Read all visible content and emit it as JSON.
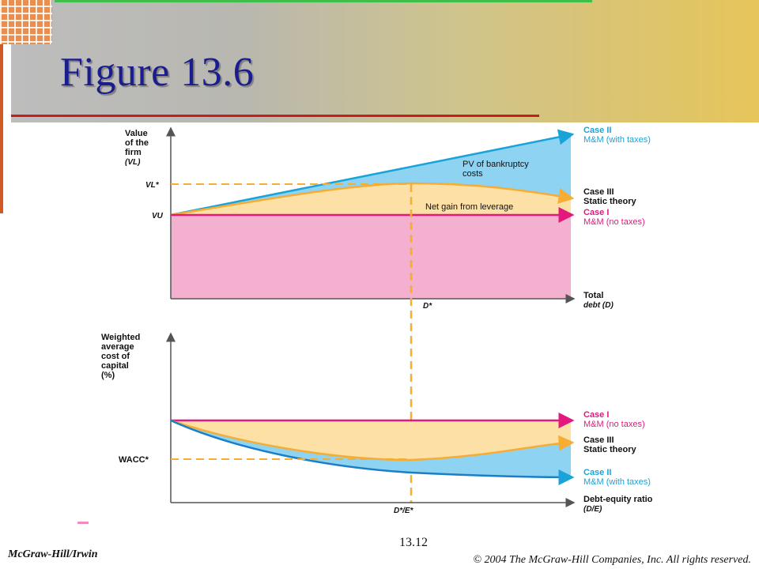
{
  "slide": {
    "title": "Figure 13.6",
    "page_number": "13.12",
    "footer_left": "McGraw-Hill/Irwin",
    "footer_right": "© 2004 The McGraw-Hill Companies, Inc. All rights reserved."
  },
  "colors": {
    "title": "#1b1d8f",
    "case_blue": "#1aa3d9",
    "case_pink": "#e3197e",
    "static_orange": "#f5ad34",
    "blue_fill": "#8fd3f2",
    "orange_fill": "#fde0a6",
    "pink_fill": "#f4b0cf"
  },
  "chart_data": [
    {
      "type": "line",
      "ylabel": [
        "Value",
        "of the",
        "firm",
        "(VL)"
      ],
      "xlabel": [
        "Total",
        "debt (D)"
      ],
      "y_ticks": [
        "VL*",
        "VU"
      ],
      "x_ticks": [
        "D*"
      ],
      "series": [
        {
          "name": "Case II — M&M (with taxes)",
          "shape": "rising straight line"
        },
        {
          "name": "Case III — Static theory",
          "shape": "hump peaking at D*"
        },
        {
          "name": "Case I — M&M (no taxes)",
          "shape": "flat at VU"
        }
      ],
      "case_labels": [
        {
          "case": "Case II",
          "desc": "M&M (with taxes)",
          "color": "blue"
        },
        {
          "case": "Case III",
          "desc": "Static theory",
          "color": "black"
        },
        {
          "case": "Case I",
          "desc": "M&M (no taxes)",
          "color": "pink"
        }
      ],
      "annotations": [
        "PV of bankruptcy",
        "costs",
        "Net gain from leverage"
      ]
    },
    {
      "type": "line",
      "ylabel": [
        "Weighted",
        "average",
        "cost of",
        "capital",
        "(%)"
      ],
      "xlabel": [
        "Debt-equity ratio",
        "(D/E)"
      ],
      "y_ticks": [
        "WACC*"
      ],
      "x_ticks": [
        "D*/E*"
      ],
      "series": [
        {
          "name": "Case I — M&M (no taxes)",
          "shape": "flat"
        },
        {
          "name": "Case III — Static theory",
          "shape": "U-shape, minimum at D*/E*"
        },
        {
          "name": "Case II — M&M (with taxes)",
          "shape": "declining curve"
        }
      ],
      "case_labels": [
        {
          "case": "Case I",
          "desc": "M&M (no taxes)",
          "color": "pink"
        },
        {
          "case": "Case III",
          "desc": "Static theory",
          "color": "black"
        },
        {
          "case": "Case II",
          "desc": "M&M (with taxes)",
          "color": "blue"
        }
      ]
    }
  ]
}
